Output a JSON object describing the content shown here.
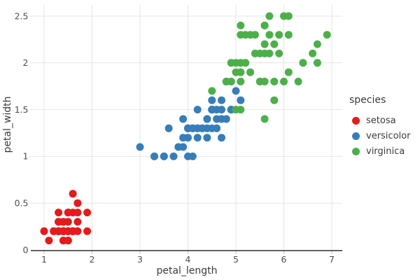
{
  "figure": {
    "background": "#ffffff",
    "grid_color": "#e4e4e4",
    "axis_line_color": "#2e2e2e",
    "tick_mark_color": "#bdbdbd",
    "tick_text_color": "#4d4d4d",
    "label_text_color": "#3a3a3a"
  },
  "chart_data": {
    "type": "scatter",
    "title": "",
    "xlabel": "petal_length",
    "ylabel": "petal_width",
    "legend_title": "species",
    "legend_position": "right",
    "grid": true,
    "marker_size": 5.5,
    "xlim": [
      0.74,
      7.22
    ],
    "ylim": [
      -0.01,
      2.62
    ],
    "x_ticks": [
      1,
      2,
      3,
      4,
      5,
      6,
      7
    ],
    "y_ticks": [
      0,
      0.5,
      1,
      1.5,
      2,
      2.5
    ],
    "series": [
      {
        "name": "setosa",
        "color": "#e41a1c",
        "x": [
          1.4,
          1.4,
          1.3,
          1.5,
          1.4,
          1.7,
          1.4,
          1.5,
          1.4,
          1.5,
          1.5,
          1.6,
          1.4,
          1.1,
          1.2,
          1.5,
          1.3,
          1.4,
          1.7,
          1.5,
          1.7,
          1.5,
          1.0,
          1.7,
          1.9,
          1.6,
          1.6,
          1.5,
          1.4,
          1.6,
          1.6,
          1.5,
          1.5,
          1.4,
          1.5,
          1.2,
          1.3,
          1.4,
          1.3,
          1.5,
          1.3,
          1.3,
          1.3,
          1.6,
          1.9,
          1.4,
          1.6,
          1.4,
          1.5,
          1.4
        ],
        "y": [
          0.2,
          0.2,
          0.2,
          0.2,
          0.2,
          0.4,
          0.3,
          0.2,
          0.2,
          0.1,
          0.2,
          0.2,
          0.1,
          0.1,
          0.2,
          0.4,
          0.4,
          0.3,
          0.3,
          0.3,
          0.2,
          0.4,
          0.2,
          0.5,
          0.2,
          0.2,
          0.4,
          0.2,
          0.2,
          0.2,
          0.2,
          0.4,
          0.1,
          0.2,
          0.2,
          0.2,
          0.2,
          0.1,
          0.2,
          0.2,
          0.3,
          0.3,
          0.2,
          0.6,
          0.4,
          0.3,
          0.2,
          0.2,
          0.2,
          0.2
        ]
      },
      {
        "name": "versicolor",
        "color": "#377eb8",
        "x": [
          4.7,
          4.5,
          4.9,
          4.0,
          4.6,
          4.5,
          4.7,
          3.3,
          4.6,
          3.9,
          3.5,
          4.2,
          4.0,
          4.7,
          3.6,
          4.4,
          4.5,
          4.1,
          4.5,
          3.9,
          4.8,
          4.0,
          4.9,
          4.7,
          4.3,
          4.4,
          4.8,
          5.0,
          4.5,
          3.5,
          3.8,
          3.7,
          3.9,
          5.1,
          4.5,
          4.5,
          4.7,
          4.4,
          4.1,
          4.0,
          4.4,
          4.6,
          4.0,
          3.3,
          4.2,
          4.2,
          4.2,
          4.3,
          3.0,
          4.1
        ],
        "y": [
          1.4,
          1.5,
          1.5,
          1.3,
          1.5,
          1.3,
          1.6,
          1.0,
          1.3,
          1.4,
          1.0,
          1.5,
          1.0,
          1.4,
          1.3,
          1.4,
          1.5,
          1.0,
          1.5,
          1.1,
          1.8,
          1.3,
          1.5,
          1.2,
          1.3,
          1.4,
          1.4,
          1.7,
          1.5,
          1.0,
          1.1,
          1.0,
          1.2,
          1.6,
          1.5,
          1.6,
          1.5,
          1.3,
          1.3,
          1.3,
          1.2,
          1.4,
          1.2,
          1.0,
          1.3,
          1.2,
          1.3,
          1.3,
          1.1,
          1.3
        ]
      },
      {
        "name": "virginica",
        "color": "#4daf4a",
        "x": [
          6.0,
          5.1,
          5.9,
          5.6,
          5.8,
          6.6,
          4.5,
          6.3,
          5.8,
          6.1,
          5.1,
          5.3,
          5.5,
          5.0,
          5.1,
          5.3,
          5.5,
          6.7,
          6.9,
          5.0,
          5.7,
          4.9,
          6.7,
          4.9,
          5.7,
          6.0,
          4.8,
          4.9,
          5.6,
          5.8,
          6.1,
          6.4,
          5.6,
          5.1,
          5.6,
          6.1,
          5.6,
          5.5,
          4.8,
          5.4,
          5.6,
          5.1,
          5.1,
          5.9,
          5.7,
          5.2,
          5.0,
          5.2,
          5.4,
          5.1
        ],
        "y": [
          2.5,
          1.9,
          2.1,
          1.8,
          2.2,
          2.1,
          1.7,
          1.8,
          1.8,
          2.5,
          2.0,
          1.9,
          2.1,
          2.0,
          2.4,
          2.3,
          1.8,
          2.2,
          2.3,
          1.5,
          2.3,
          2.0,
          2.0,
          1.8,
          2.1,
          1.8,
          1.8,
          1.8,
          2.1,
          1.6,
          1.9,
          2.0,
          2.2,
          1.5,
          1.4,
          2.3,
          2.4,
          1.8,
          1.8,
          2.1,
          2.4,
          2.3,
          1.9,
          2.3,
          2.5,
          2.3,
          1.9,
          2.0,
          2.3,
          1.8
        ]
      }
    ]
  }
}
